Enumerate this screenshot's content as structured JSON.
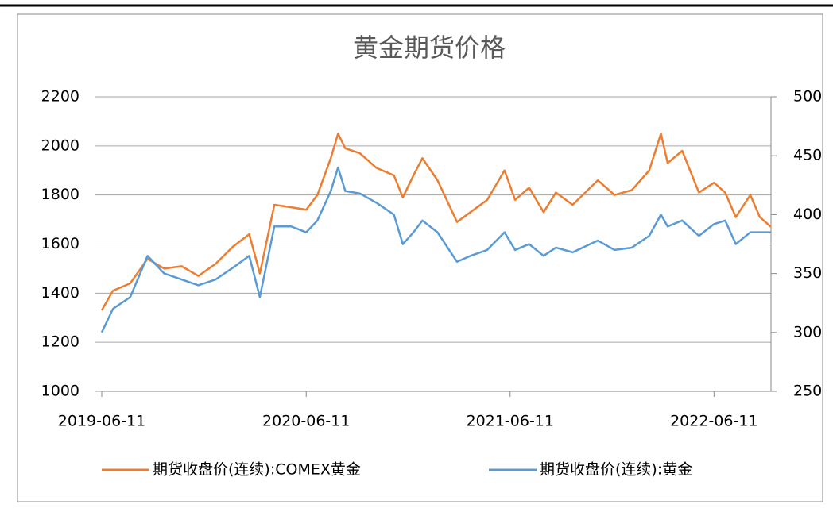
{
  "chart_data": {
    "type": "line",
    "title": "黄金期货价格",
    "x": [
      "2019-06-11",
      "2019-07-01",
      "2019-08-01",
      "2019-09-01",
      "2019-10-01",
      "2019-11-01",
      "2019-12-01",
      "2020-01-01",
      "2020-02-01",
      "2020-03-01",
      "2020-03-20",
      "2020-04-15",
      "2020-05-15",
      "2020-06-11",
      "2020-07-01",
      "2020-07-25",
      "2020-08-07",
      "2020-08-20",
      "2020-09-15",
      "2020-10-15",
      "2020-11-15",
      "2020-12-01",
      "2020-12-20",
      "2021-01-05",
      "2021-02-01",
      "2021-03-08",
      "2021-04-01",
      "2021-05-01",
      "2021-06-01",
      "2021-06-20",
      "2021-07-15",
      "2021-08-10",
      "2021-09-01",
      "2021-10-01",
      "2021-11-15",
      "2021-12-15",
      "2022-01-15",
      "2022-02-15",
      "2022-03-08",
      "2022-03-20",
      "2022-04-15",
      "2022-05-15",
      "2022-06-11",
      "2022-07-01",
      "2022-07-20",
      "2022-08-15",
      "2022-09-01",
      "2022-09-21"
    ],
    "series": [
      {
        "name": "期货收盘价(连续):COMEX黄金",
        "color": "#ed7d31",
        "axis": "y",
        "values": [
          1330,
          1410,
          1440,
          1540,
          1500,
          1510,
          1470,
          1520,
          1590,
          1640,
          1480,
          1760,
          1750,
          1740,
          1800,
          1950,
          2050,
          1990,
          1970,
          1910,
          1880,
          1790,
          1880,
          1950,
          1860,
          1690,
          1730,
          1780,
          1900,
          1780,
          1830,
          1730,
          1810,
          1760,
          1860,
          1800,
          1820,
          1900,
          2050,
          1930,
          1980,
          1810,
          1850,
          1810,
          1710,
          1800,
          1710,
          1670
        ]
      },
      {
        "name": "期货收盘价(连续):黄金",
        "color": "#5b9bd5",
        "axis": "y2",
        "values": [
          300,
          320,
          330,
          365,
          350,
          345,
          340,
          345,
          355,
          365,
          330,
          390,
          390,
          385,
          395,
          420,
          440,
          420,
          418,
          410,
          400,
          375,
          385,
          395,
          385,
          360,
          365,
          370,
          385,
          370,
          375,
          365,
          372,
          368,
          378,
          370,
          372,
          382,
          400,
          390,
          395,
          382,
          392,
          395,
          375,
          385,
          385,
          385
        ]
      }
    ],
    "xlim": [
      "2019-06-11",
      "2022-09-21"
    ],
    "xticks": [
      "2019-06-11",
      "2020-06-11",
      "2021-06-11",
      "2022-06-11"
    ],
    "ylim": [
      1000,
      2200
    ],
    "yticks": [
      1000,
      1200,
      1400,
      1600,
      1800,
      2000,
      2200
    ],
    "y2lim": [
      250,
      500
    ],
    "y2ticks": [
      250,
      300,
      350,
      400,
      450,
      500
    ],
    "grid": true,
    "legend": "bottom"
  }
}
